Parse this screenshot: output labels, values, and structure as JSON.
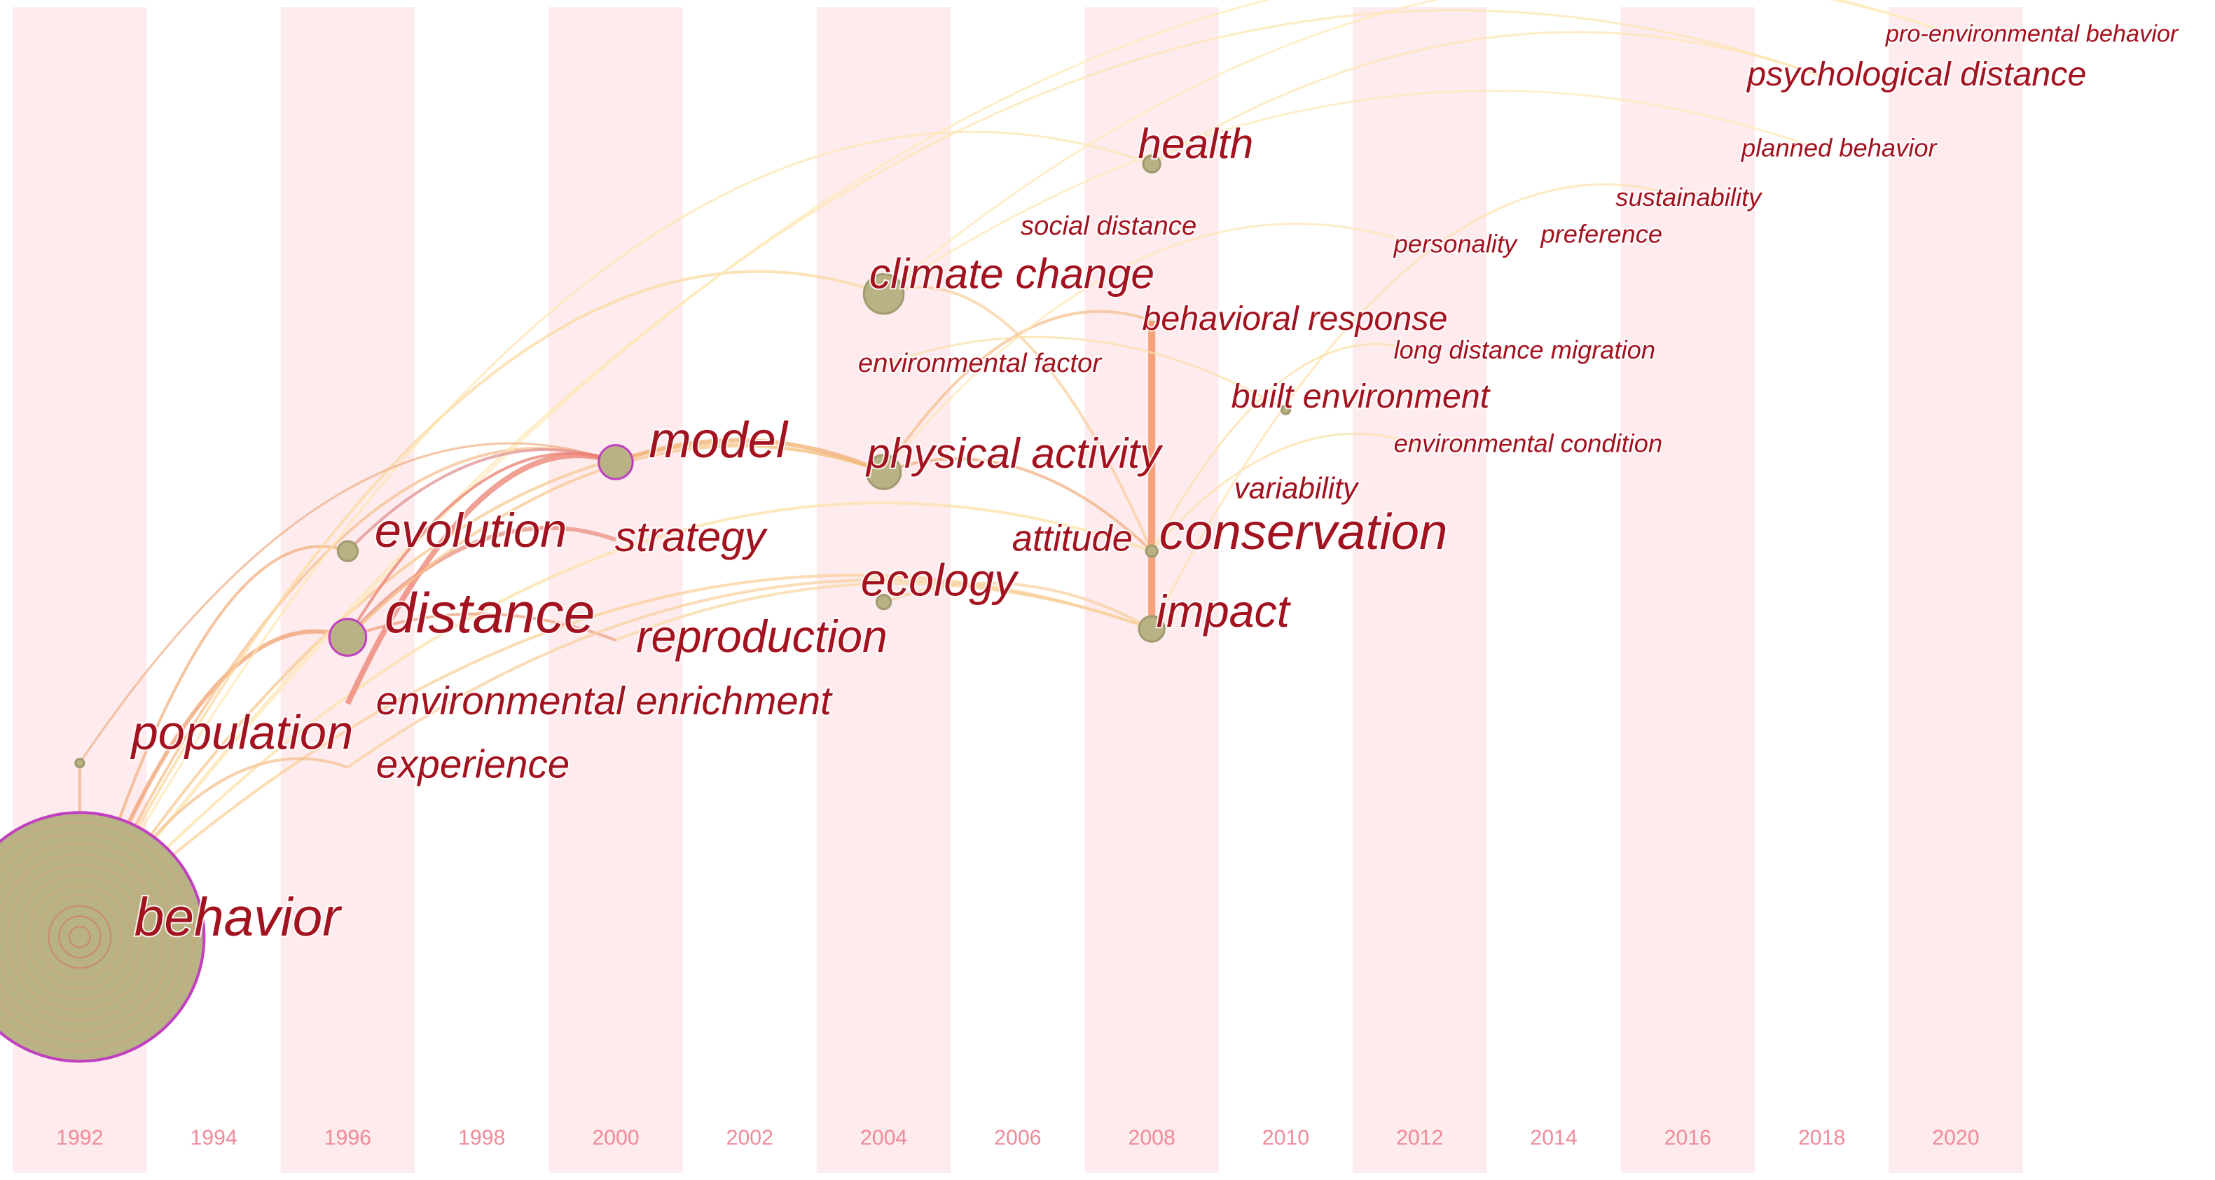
{
  "chart_data": {
    "type": "timezone",
    "xticks": [
      1992,
      1994,
      1996,
      1998,
      2000,
      2002,
      2004,
      2006,
      2008,
      2010,
      2012,
      2014,
      2016,
      2018,
      2020
    ],
    "xlim": [
      1991,
      2021
    ],
    "label_color": "#a3121f",
    "stripe_color": "#fdebee",
    "year_label_color": "#f08a98",
    "node_color": "#b8b285",
    "keywords": [
      {
        "label": "behavior",
        "x": 1992
      },
      {
        "label": "population",
        "x": 1992
      },
      {
        "label": "distance",
        "x": 1996
      },
      {
        "label": "evolution",
        "x": 1996
      },
      {
        "label": "environmental enrichment",
        "x": 1996
      },
      {
        "label": "experience",
        "x": 1996
      },
      {
        "label": "model",
        "x": 2000
      },
      {
        "label": "strategy",
        "x": 2000
      },
      {
        "label": "reproduction",
        "x": 2000
      },
      {
        "label": "climate change",
        "x": 2004
      },
      {
        "label": "physical activity",
        "x": 2004
      },
      {
        "label": "ecology",
        "x": 2004
      },
      {
        "label": "environmental factor",
        "x": 2004
      },
      {
        "label": "social distance",
        "x": 2006
      },
      {
        "label": "attitude",
        "x": 2006
      },
      {
        "label": "health",
        "x": 2008
      },
      {
        "label": "behavioral response",
        "x": 2008
      },
      {
        "label": "conservation",
        "x": 2008
      },
      {
        "label": "impact",
        "x": 2008
      },
      {
        "label": "variability",
        "x": 2010
      },
      {
        "label": "built environment",
        "x": 2010
      },
      {
        "label": "personality",
        "x": 2012
      },
      {
        "label": "long distance migration",
        "x": 2012
      },
      {
        "label": "environmental condition",
        "x": 2012
      },
      {
        "label": "preference",
        "x": 2014
      },
      {
        "label": "sustainability",
        "x": 2016
      },
      {
        "label": "planned behavior",
        "x": 2018
      },
      {
        "label": "psychological distance",
        "x": 2018
      },
      {
        "label": "pro-environmental behavior",
        "x": 2020
      }
    ]
  }
}
